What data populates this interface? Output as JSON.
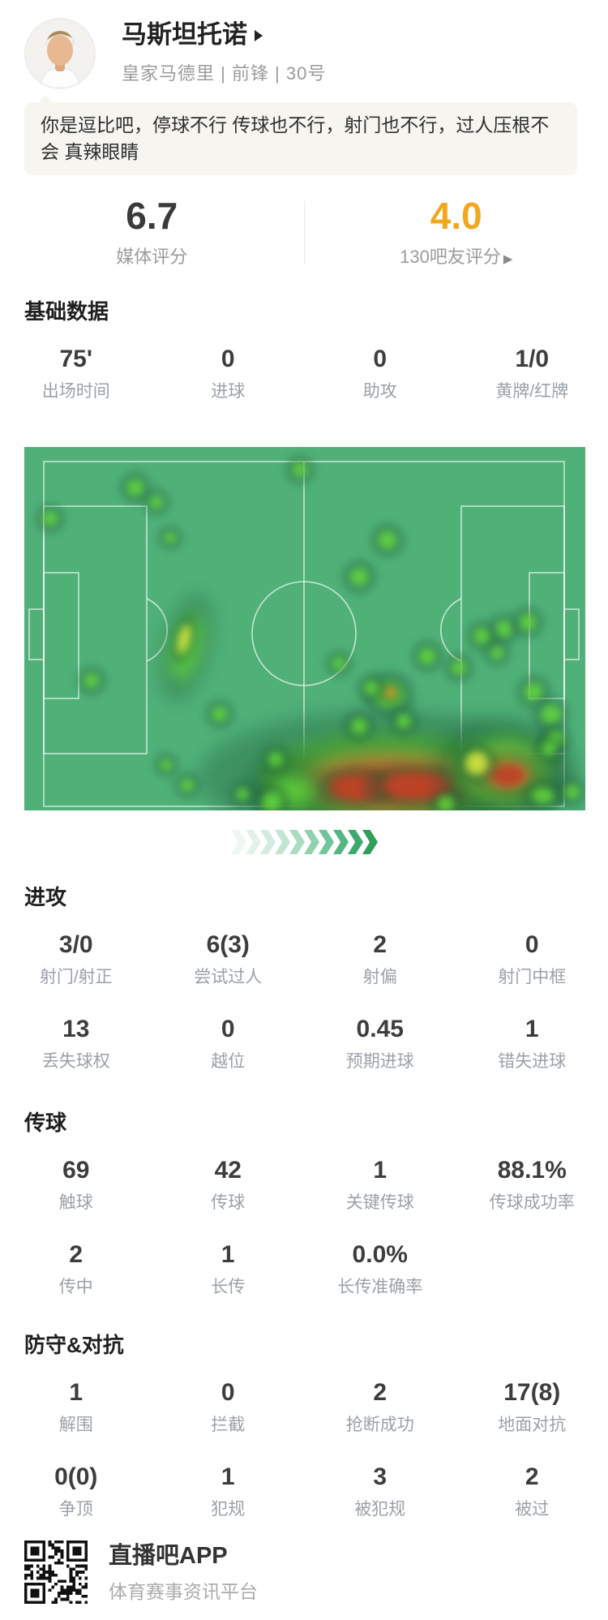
{
  "header": {
    "player_name": "马斯坦托诺",
    "team_line": "皇家马德里 | 前锋 | 30号"
  },
  "comment": {
    "text": "你是逗比吧，停球不行 传球也不行，射门也不行，过人压根不会 真辣眼睛"
  },
  "ratings": {
    "media_value": "6.7",
    "media_label": "媒体评分",
    "fans_value": "4.0",
    "fans_label": "130吧友评分",
    "fans_arrow": "▶",
    "fans_color": "#f0a91e"
  },
  "sections": [
    {
      "title": "基础数据",
      "rows": [
        [
          {
            "value": "75'",
            "label": "出场时间"
          },
          {
            "value": "0",
            "label": "进球"
          },
          {
            "value": "0",
            "label": "助攻"
          },
          {
            "value": "1/0",
            "label": "黄牌/红牌"
          }
        ]
      ]
    },
    {
      "title": "进攻",
      "rows": [
        [
          {
            "value": "3/0",
            "label": "射门/射正"
          },
          {
            "value": "6(3)",
            "label": "尝试过人"
          },
          {
            "value": "2",
            "label": "射偏"
          },
          {
            "value": "0",
            "label": "射门中框"
          }
        ],
        [
          {
            "value": "13",
            "label": "丢失球权"
          },
          {
            "value": "0",
            "label": "越位"
          },
          {
            "value": "0.45",
            "label": "预期进球"
          },
          {
            "value": "1",
            "label": "错失进球"
          }
        ]
      ]
    },
    {
      "title": "传球",
      "rows": [
        [
          {
            "value": "69",
            "label": "触球"
          },
          {
            "value": "42",
            "label": "传球"
          },
          {
            "value": "1",
            "label": "关键传球"
          },
          {
            "value": "88.1%",
            "label": "传球成功率"
          }
        ],
        [
          {
            "value": "2",
            "label": "传中"
          },
          {
            "value": "1",
            "label": "长传"
          },
          {
            "value": "0.0%",
            "label": "长传准确率"
          }
        ]
      ]
    },
    {
      "title": "防守&对抗",
      "rows": [
        [
          {
            "value": "1",
            "label": "解围"
          },
          {
            "value": "0",
            "label": "拦截"
          },
          {
            "value": "2",
            "label": "抢断成功"
          },
          {
            "value": "17(8)",
            "label": "地面对抗"
          }
        ],
        [
          {
            "value": "0(0)",
            "label": "争顶"
          },
          {
            "value": "1",
            "label": "犯规"
          },
          {
            "value": "3",
            "label": "被犯规"
          },
          {
            "value": "2",
            "label": "被过"
          }
        ]
      ]
    }
  ],
  "heatmap": {
    "base_color": "#4fb078",
    "line_color": "rgba(255,255,255,0.68)",
    "palette": {
      "halo": "#1e5434",
      "g": "#63d83a",
      "y": "#d8e63c",
      "o": "#e58f33",
      "r": "#bf4326"
    },
    "blob_format": "[x,y,rx,ry,rotation_deg,color_key,blur_level]",
    "blobs": [
      [
        445,
        408,
        150,
        52,
        0,
        "g",
        2
      ],
      [
        448,
        412,
        112,
        36,
        0,
        "y",
        2
      ],
      [
        450,
        414,
        95,
        28,
        0,
        "o",
        2
      ],
      [
        450,
        416,
        78,
        20,
        0,
        "r",
        2
      ],
      [
        408,
        420,
        30,
        14,
        0,
        "r",
        1
      ],
      [
        485,
        418,
        42,
        15,
        0,
        "r",
        1
      ],
      [
        592,
        398,
        55,
        40,
        0,
        "g",
        2
      ],
      [
        594,
        402,
        38,
        26,
        0,
        "y",
        2
      ],
      [
        596,
        404,
        28,
        18,
        0,
        "o",
        1
      ],
      [
        597,
        405,
        20,
        13,
        0,
        "r",
        1
      ],
      [
        330,
        425,
        28,
        20,
        0,
        "g",
        2
      ],
      [
        305,
        438,
        12,
        12,
        0,
        "g",
        1
      ],
      [
        558,
        390,
        14,
        14,
        0,
        "y",
        1
      ],
      [
        520,
        440,
        10,
        10,
        0,
        "g",
        1
      ],
      [
        640,
        430,
        14,
        10,
        0,
        "g",
        1
      ],
      [
        676,
        425,
        9,
        9,
        0,
        "g",
        1
      ],
      [
        200,
        247,
        16,
        42,
        14,
        "g",
        2
      ],
      [
        197,
        237,
        7,
        18,
        14,
        "y",
        1
      ],
      [
        450,
        305,
        18,
        16,
        0,
        "g",
        1
      ],
      [
        428,
        297,
        9,
        9,
        0,
        "g",
        1
      ],
      [
        452,
        303,
        7,
        7,
        0,
        "o",
        1
      ],
      [
        340,
        28,
        9,
        9,
        0,
        "g",
        1
      ],
      [
        137,
        50,
        10,
        10,
        0,
        "g",
        1
      ],
      [
        163,
        68,
        8,
        8,
        0,
        "g",
        1
      ],
      [
        32,
        88,
        9,
        9,
        0,
        "g",
        1
      ],
      [
        180,
        112,
        7,
        7,
        0,
        "g",
        1
      ],
      [
        83,
        288,
        9,
        9,
        0,
        "g",
        1
      ],
      [
        448,
        115,
        11,
        11,
        0,
        "g",
        1
      ],
      [
        413,
        160,
        11,
        11,
        0,
        "g",
        1
      ],
      [
        497,
        258,
        10,
        10,
        0,
        "g",
        1
      ],
      [
        536,
        272,
        9,
        9,
        0,
        "g",
        1
      ],
      [
        565,
        233,
        10,
        10,
        0,
        "g",
        1
      ],
      [
        592,
        224,
        10,
        10,
        0,
        "g",
        1
      ],
      [
        621,
        216,
        10,
        10,
        0,
        "g",
        1
      ],
      [
        583,
        254,
        8,
        8,
        0,
        "g",
        1
      ],
      [
        628,
        302,
        11,
        11,
        0,
        "g",
        1
      ],
      [
        650,
        330,
        12,
        12,
        0,
        "g",
        1
      ],
      [
        655,
        360,
        10,
        10,
        0,
        "g",
        1
      ],
      [
        647,
        372,
        9,
        9,
        0,
        "g",
        1
      ],
      [
        388,
        267,
        8,
        8,
        0,
        "g",
        1
      ],
      [
        241,
        329,
        9,
        9,
        0,
        "g",
        1
      ],
      [
        310,
        385,
        9,
        9,
        0,
        "g",
        1
      ],
      [
        201,
        417,
        8,
        8,
        0,
        "g",
        1
      ],
      [
        175,
        392,
        7,
        7,
        0,
        "g",
        1
      ],
      [
        269,
        428,
        8,
        8,
        0,
        "g",
        1
      ],
      [
        413,
        344,
        10,
        10,
        0,
        "g",
        1
      ],
      [
        468,
        338,
        9,
        9,
        0,
        "g",
        1
      ]
    ]
  },
  "chevrons": {
    "count": 10,
    "colors": [
      "#eef7f1",
      "#e3f2e9",
      "#d4ecdf",
      "#c2e5d2",
      "#abdcc2",
      "#90d1af",
      "#72c49a",
      "#55b684",
      "#3da96f",
      "#2f9e5b"
    ]
  },
  "footer": {
    "app_name": "直播吧APP",
    "app_desc": "体育赛事资讯平台"
  }
}
